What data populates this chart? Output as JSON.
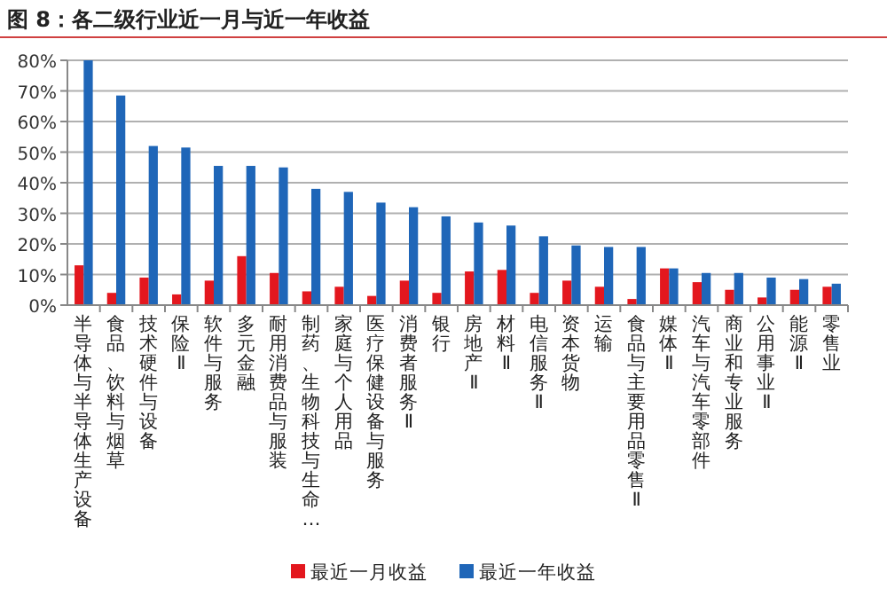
{
  "chart_data": {
    "type": "bar",
    "title": "图 8：各二级行业近一月与近一年收益",
    "categories": [
      "半导体与半导体生产设备",
      "食品、饮料与烟草",
      "技术硬件与设备",
      "保险Ⅱ",
      "软件与服务",
      "多元金融",
      "耐用消费品与服装",
      "制药、生物科技与生命…",
      "家庭与个人用品",
      "医疗保健设备与服务",
      "消费者服务Ⅱ",
      "银行",
      "房地产Ⅱ",
      "材料Ⅱ",
      "电信服务Ⅱ",
      "资本货物",
      "运输",
      "食品与主要用品零售Ⅱ",
      "媒体Ⅱ",
      "汽车与汽车零部件",
      "商业和专业服务",
      "公用事业Ⅱ",
      "能源Ⅱ",
      "零售业"
    ],
    "series": [
      {
        "name": "最近一月收益",
        "color": "#e3171e",
        "values": [
          13,
          4,
          9,
          3.5,
          8,
          16,
          10.5,
          4.5,
          6,
          3,
          8,
          4,
          11,
          11.5,
          4,
          8,
          6,
          2,
          12,
          7.5,
          5,
          2.5,
          5,
          6
        ]
      },
      {
        "name": "最近一年收益",
        "color": "#1f66b8",
        "values": [
          80,
          68.5,
          52,
          51.5,
          45.5,
          45.5,
          45,
          38,
          37,
          33.5,
          32,
          29,
          27,
          26,
          22.5,
          19.5,
          19,
          19,
          12,
          10.5,
          10.5,
          9,
          8.5,
          7
        ]
      }
    ],
    "ylim": [
      0,
      80
    ],
    "yticks": [
      {
        "value": 0,
        "label": "0%"
      },
      {
        "value": 10,
        "label": "10%"
      },
      {
        "value": 20,
        "label": "20%"
      },
      {
        "value": 30,
        "label": "30%"
      },
      {
        "value": 40,
        "label": "40%"
      },
      {
        "value": 50,
        "label": "50%"
      },
      {
        "value": 60,
        "label": "60%"
      },
      {
        "value": 70,
        "label": "70%"
      },
      {
        "value": 80,
        "label": "80%"
      }
    ],
    "grid": "y",
    "legend": "bottom"
  }
}
